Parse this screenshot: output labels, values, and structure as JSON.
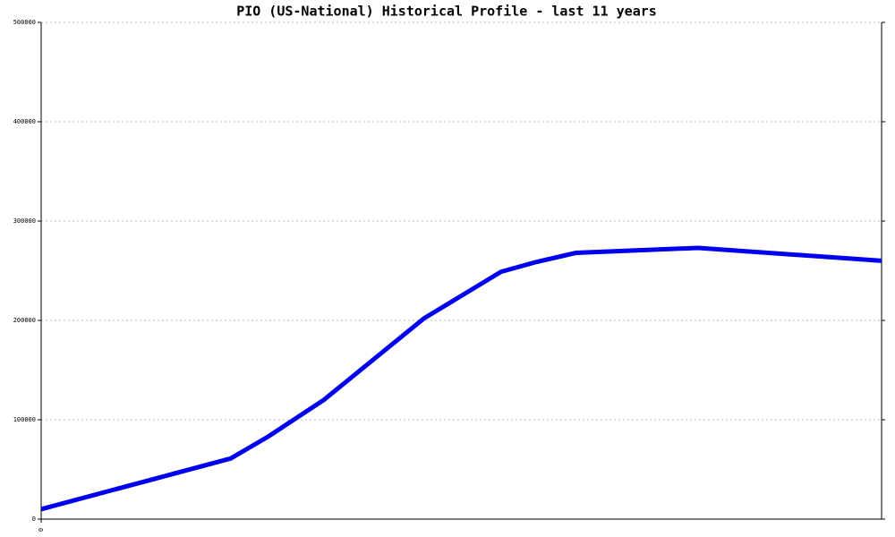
{
  "chart_data": {
    "type": "line",
    "title": "PIO (US-National) Historical Profile - last 11 years",
    "x": [
      0,
      2.48,
      2.97,
      3.7,
      5.01,
      6.02,
      6.49,
      7.0,
      8.6,
      11
    ],
    "series": [
      {
        "color": "#0000ee",
        "values": [
          10000,
          61000,
          83000,
          120000,
          202000,
          249000,
          259000,
          268000,
          273000,
          260000
        ]
      }
    ],
    "xlim": [
      0,
      11
    ],
    "xticks": [
      0
    ],
    "ylim": [
      0,
      500000
    ],
    "yticks": [
      0,
      100000,
      200000,
      300000,
      400000,
      500000
    ],
    "grid": true
  }
}
